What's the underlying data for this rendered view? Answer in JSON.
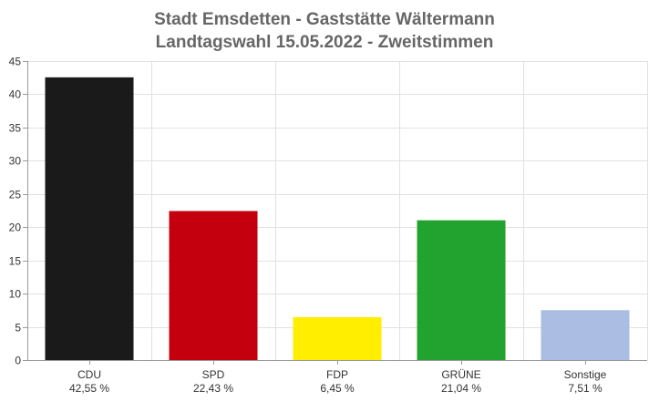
{
  "chart_data": {
    "type": "bar",
    "title": "Stadt Emsdetten - Gaststätte Wältermann",
    "subtitle": "Landtagswahl 15.05.2022  - Zweitstimmen",
    "categories": [
      "CDU",
      "SPD",
      "FDP",
      "GRÜNE",
      "Sonstige"
    ],
    "values": [
      42.55,
      22.43,
      6.45,
      21.04,
      7.51
    ],
    "value_labels": [
      "42,55 %",
      "22,43 %",
      "6,45 %",
      "21,04 %",
      "7,51 %"
    ],
    "colors": [
      "#1a1a1a",
      "#c4000f",
      "#ffee00",
      "#22a22e",
      "#abbde3"
    ],
    "yticks": [
      0,
      5,
      10,
      15,
      20,
      25,
      30,
      35,
      40,
      45
    ],
    "ylim": [
      0,
      45
    ],
    "grid": true,
    "legend": "none"
  }
}
